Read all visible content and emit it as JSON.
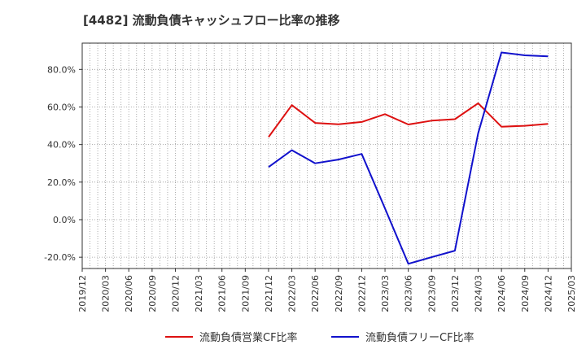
{
  "chart_data": {
    "type": "line",
    "title": "[4482]  流動負債キャッシュフロー比率の推移",
    "xlabel": "",
    "ylabel": "",
    "ylim": [
      -26,
      94
    ],
    "yticks": [
      -20,
      0,
      20,
      40,
      60,
      80
    ],
    "ytick_labels": [
      "-20.0%",
      "0.0%",
      "20.0%",
      "40.0%",
      "60.0%",
      "80.0%"
    ],
    "xticks": [
      "2019/12",
      "2020/03",
      "2020/06",
      "2020/09",
      "2020/12",
      "2021/03",
      "2021/06",
      "2021/09",
      "2021/12",
      "2022/03",
      "2022/06",
      "2022/09",
      "2022/12",
      "2023/03",
      "2023/06",
      "2023/09",
      "2023/12",
      "2024/03",
      "2024/06",
      "2024/09",
      "2024/12",
      "2025/03"
    ],
    "grid": true,
    "legend_position": "bottom",
    "series": [
      {
        "name": "流動負債営業CF比率",
        "color": "#dd1111",
        "x": [
          "2021/12",
          "2022/03",
          "2022/06",
          "2022/09",
          "2022/12",
          "2023/03",
          "2023/06",
          "2023/09",
          "2023/12",
          "2024/03",
          "2024/06",
          "2024/09",
          "2024/12"
        ],
        "values": [
          44.0,
          61.0,
          51.5,
          50.8,
          52.0,
          56.2,
          50.7,
          52.7,
          53.5,
          62.0,
          49.5,
          50.0,
          51.0
        ]
      },
      {
        "name": "流動負債フリーCF比率",
        "color": "#1111cc",
        "x": [
          "2021/12",
          "2022/03",
          "2022/06",
          "2022/09",
          "2022/12",
          "2023/03",
          "2023/06",
          "2023/09",
          "2023/12",
          "2024/03",
          "2024/06",
          "2024/09",
          "2024/12"
        ],
        "values": [
          28.0,
          37.0,
          30.0,
          32.0,
          35.0,
          6.0,
          -23.5,
          -20.0,
          -16.5,
          46.0,
          89.0,
          87.5,
          87.0
        ]
      }
    ]
  }
}
